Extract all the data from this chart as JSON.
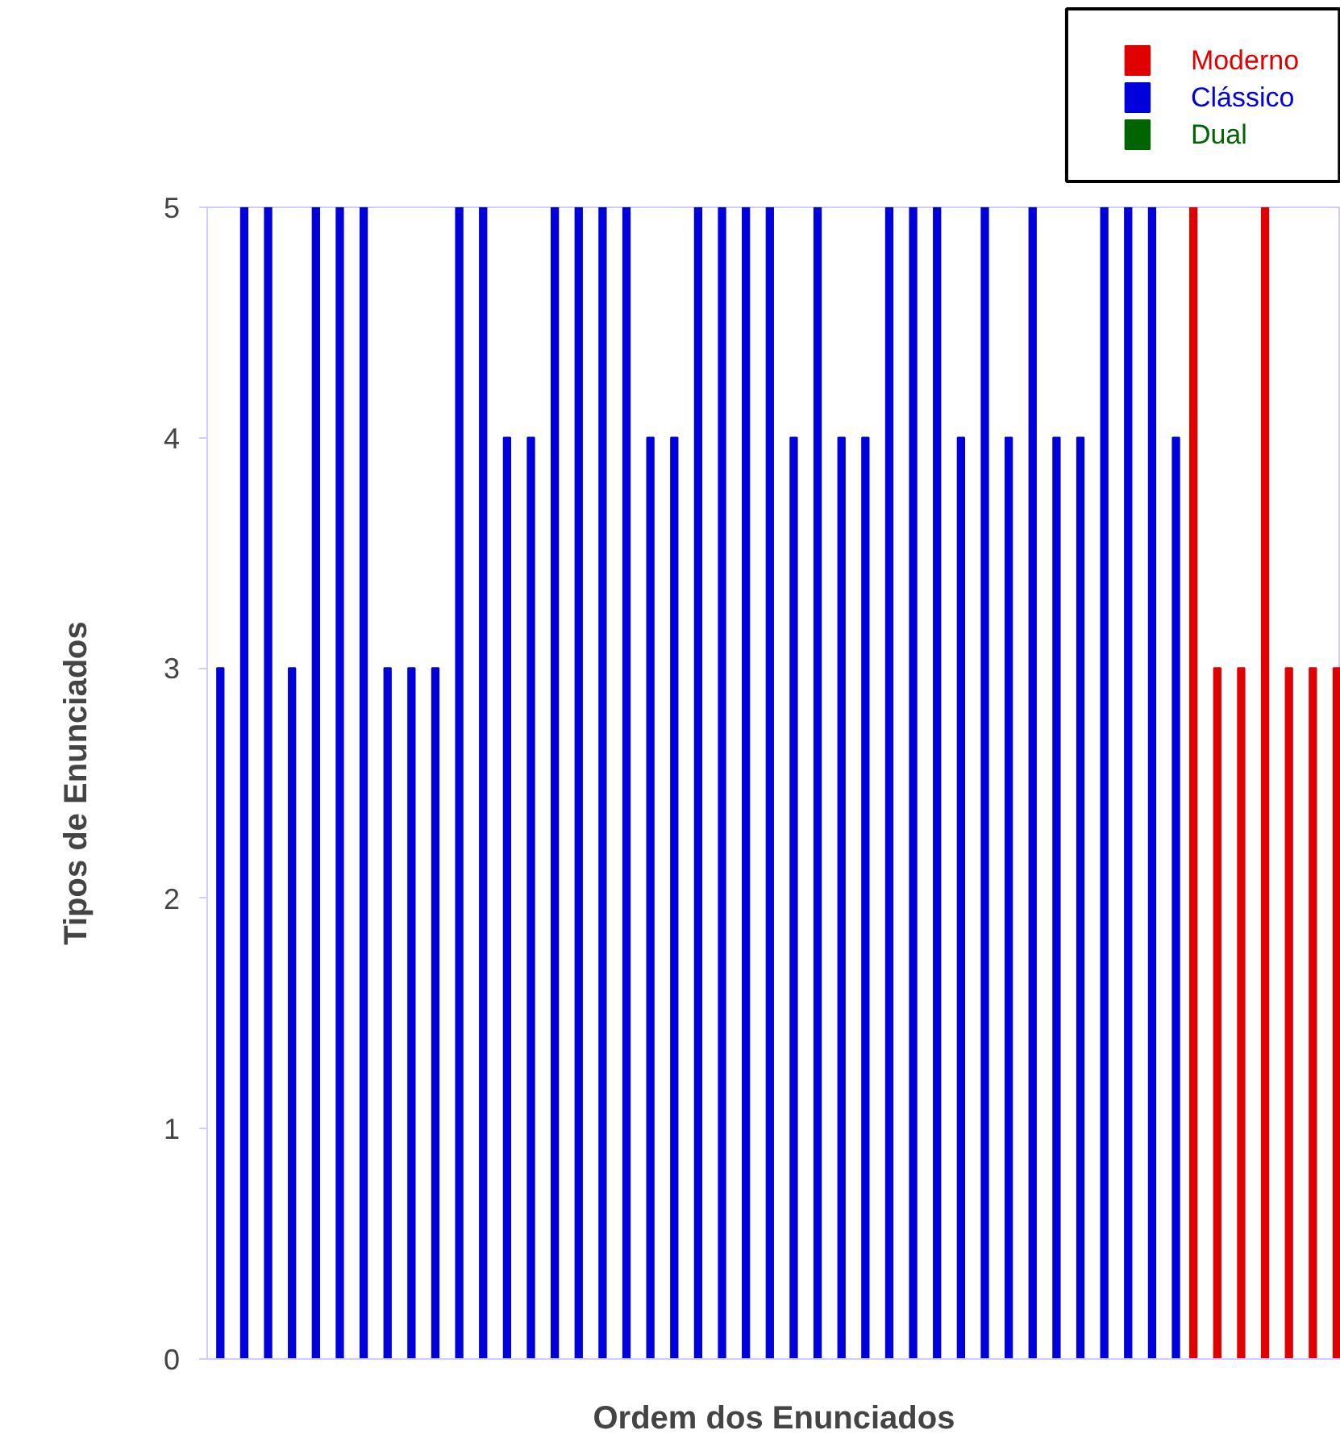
{
  "chart_data": {
    "type": "bar",
    "xlabel": "Ordem dos Enunciados",
    "ylabel": "Tipos de Enunciados",
    "categories": [
      null,
      null,
      null,
      null,
      null,
      null,
      null,
      null,
      null,
      null,
      null,
      null,
      null,
      null,
      null,
      null,
      null,
      null,
      null,
      null,
      null,
      null,
      null,
      null,
      null,
      null,
      null,
      null,
      null,
      null,
      null,
      null,
      null,
      null,
      null,
      null,
      null,
      null,
      null,
      null,
      null,
      null,
      null,
      null,
      null,
      null,
      null,
      null
    ],
    "series": [
      {
        "name": "Moderno",
        "color": "#e00000",
        "values": [
          null,
          null,
          null,
          null,
          null,
          null,
          null,
          null,
          null,
          null,
          null,
          null,
          null,
          null,
          null,
          null,
          null,
          null,
          null,
          null,
          null,
          null,
          null,
          null,
          null,
          null,
          null,
          null,
          null,
          null,
          null,
          null,
          null,
          null,
          null,
          null,
          null,
          null,
          null,
          null,
          null,
          5,
          3,
          3,
          5,
          3,
          3,
          3
        ]
      },
      {
        "name": "Clássico",
        "color": "#0000dd",
        "values": [
          3,
          5,
          5,
          3,
          5,
          5,
          5,
          3,
          3,
          3,
          5,
          5,
          4,
          4,
          5,
          5,
          5,
          5,
          4,
          4,
          5,
          5,
          5,
          5,
          4,
          5,
          4,
          4,
          5,
          5,
          5,
          4,
          5,
          4,
          5,
          4,
          4,
          5,
          5,
          5,
          4,
          null,
          null,
          null,
          null,
          null,
          null,
          null
        ]
      },
      {
        "name": "Dual",
        "color": "#006400",
        "values": [
          null,
          null,
          null,
          null,
          null,
          null,
          null,
          null,
          null,
          null,
          null,
          null,
          null,
          null,
          null,
          null,
          null,
          null,
          null,
          null,
          null,
          null,
          null,
          null,
          null,
          null,
          null,
          null,
          null,
          null,
          null,
          null,
          null,
          null,
          null,
          null,
          null,
          null,
          null,
          null,
          null,
          null,
          null,
          null,
          null,
          null,
          null,
          null
        ]
      }
    ],
    "ylim": [
      0,
      5
    ],
    "yticks": [
      0,
      1,
      2,
      3,
      4,
      5
    ],
    "grid": false,
    "legend": "top right",
    "tick_labels": "y"
  }
}
